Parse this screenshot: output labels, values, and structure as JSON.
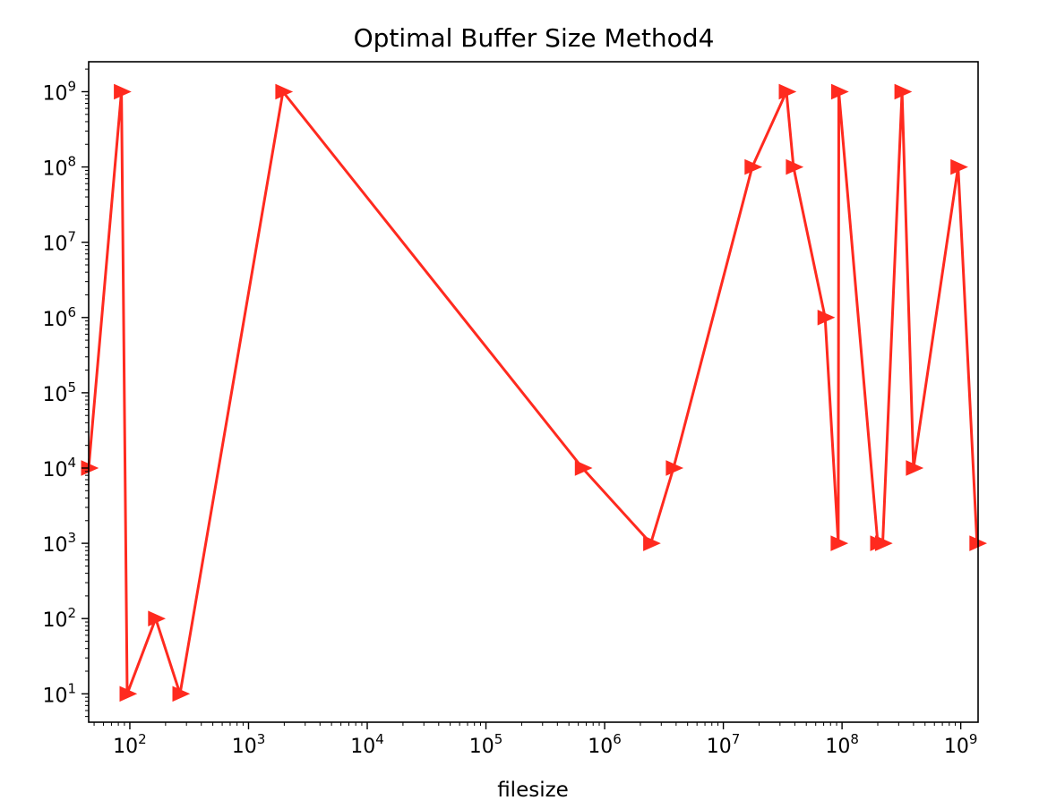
{
  "chart_data": {
    "type": "line",
    "title": "Optimal Buffer Size Method4",
    "xlabel": "filesize",
    "ylabel": "",
    "xscale": "log",
    "yscale": "log",
    "xlim": [
      45,
      1400000000
    ],
    "ylim": [
      4.2,
      2500000000
    ],
    "grid": false,
    "legend": "none",
    "marker": "triangle-right",
    "x_ticks": [
      {
        "base": "10",
        "exp": "2",
        "value": 100
      },
      {
        "base": "10",
        "exp": "3",
        "value": 1000
      },
      {
        "base": "10",
        "exp": "4",
        "value": 10000
      },
      {
        "base": "10",
        "exp": "5",
        "value": 100000
      },
      {
        "base": "10",
        "exp": "6",
        "value": 1000000
      },
      {
        "base": "10",
        "exp": "7",
        "value": 10000000
      },
      {
        "base": "10",
        "exp": "8",
        "value": 100000000
      },
      {
        "base": "10",
        "exp": "9",
        "value": 1000000000
      }
    ],
    "y_ticks": [
      {
        "base": "10",
        "exp": "1",
        "value": 10
      },
      {
        "base": "10",
        "exp": "2",
        "value": 100
      },
      {
        "base": "10",
        "exp": "3",
        "value": 1000
      },
      {
        "base": "10",
        "exp": "4",
        "value": 10000
      },
      {
        "base": "10",
        "exp": "5",
        "value": 100000
      },
      {
        "base": "10",
        "exp": "6",
        "value": 1000000
      },
      {
        "base": "10",
        "exp": "7",
        "value": 10000000
      },
      {
        "base": "10",
        "exp": "8",
        "value": 100000000
      },
      {
        "base": "10",
        "exp": "9",
        "value": 1000000000
      }
    ],
    "series": [
      {
        "color": "#ff2a1f",
        "x": [
          45,
          85,
          95,
          165,
          265,
          1950,
          650000,
          2450000,
          3800000,
          17500000,
          34000000,
          39000000,
          72000000,
          93000000,
          94000000,
          200000000,
          220000000,
          320000000,
          400000000,
          950000000,
          1370000000
        ],
        "y": [
          10000,
          1000000000,
          10,
          100,
          10,
          1000000000,
          10000,
          1000,
          10000,
          100000000,
          1000000000,
          100000000,
          1000000,
          1000,
          1000000000,
          1000,
          1000,
          1000000000,
          10000,
          100000000,
          1000
        ]
      }
    ]
  }
}
